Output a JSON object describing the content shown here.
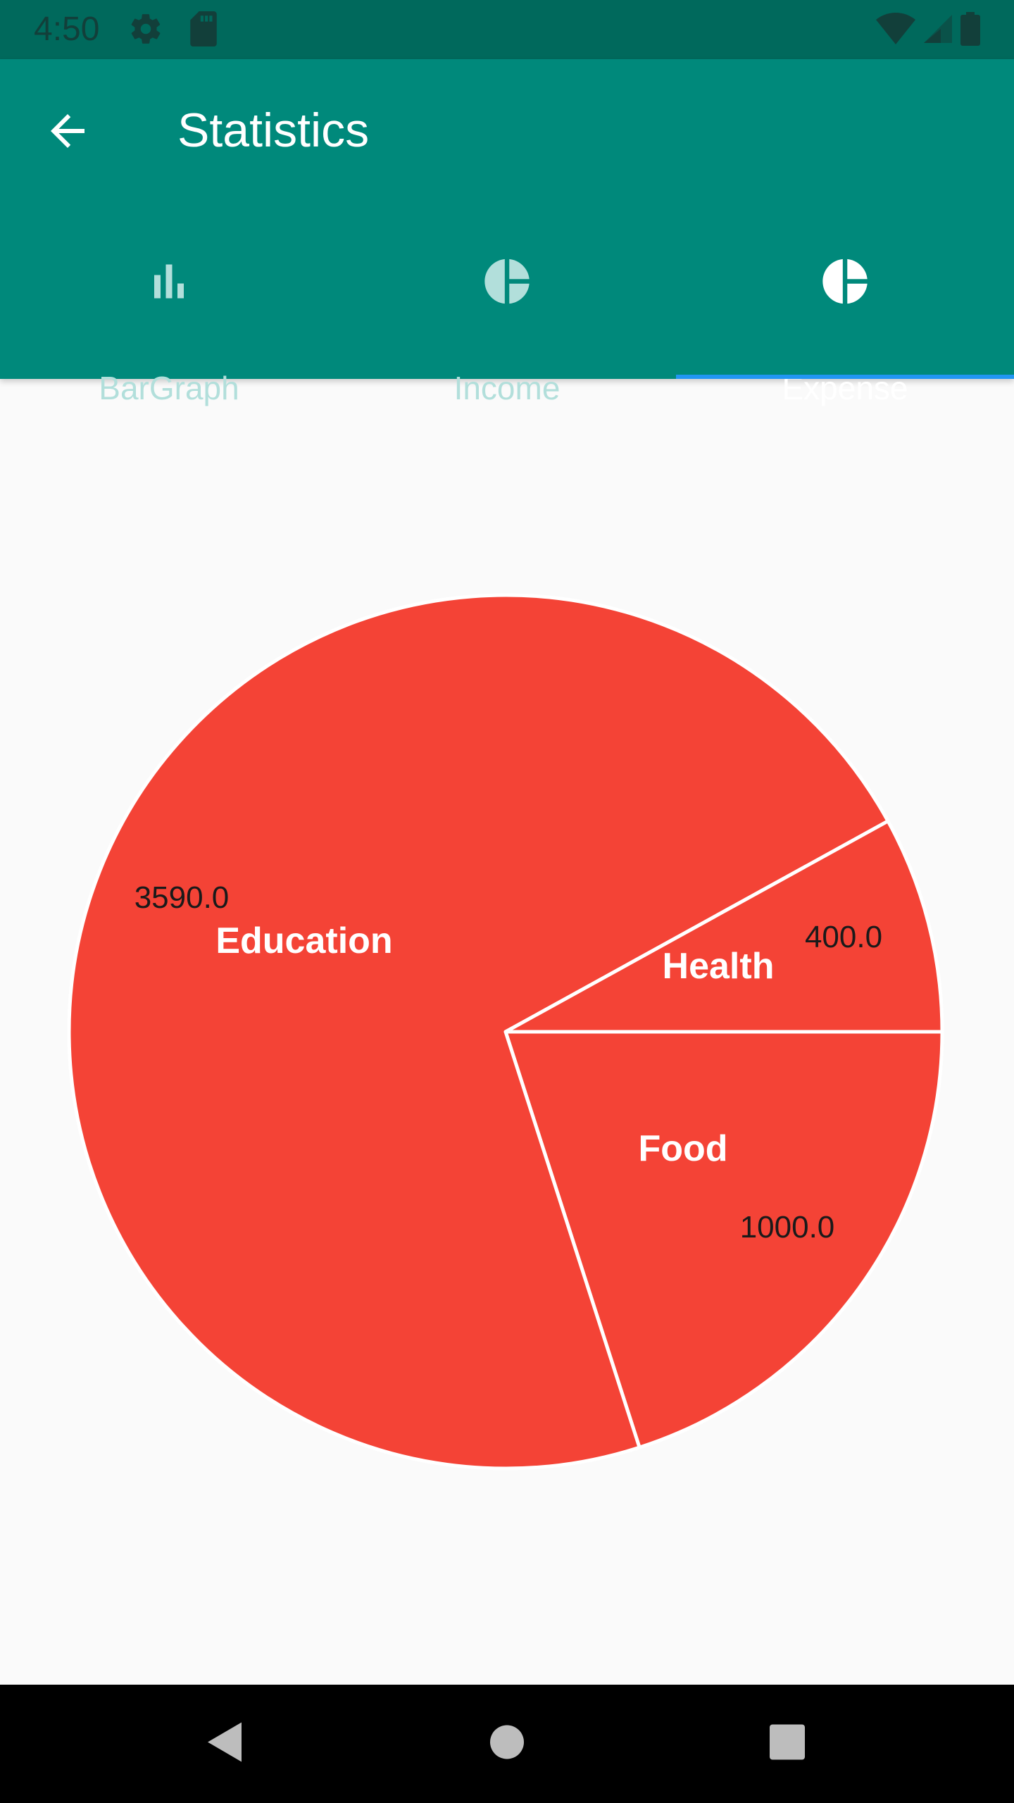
{
  "status_bar": {
    "time": "4:50"
  },
  "app_bar": {
    "title": "Statistics"
  },
  "tabs": [
    {
      "label": "BarGraph",
      "icon": "bar-chart-icon",
      "active": false
    },
    {
      "label": "Income",
      "icon": "pie-chart-icon",
      "active": false
    },
    {
      "label": "Expense",
      "icon": "pie-chart-icon",
      "active": true
    }
  ],
  "colors": {
    "status_bar": "#00695C",
    "app_bar": "#00897B",
    "tab_indicator": "#2196F3",
    "slice": "#F44336",
    "slice_border": "#FFFFFF",
    "background": "#FAFAFA"
  },
  "chart_data": {
    "type": "pie",
    "slices": [
      {
        "label": "Education",
        "value": 3590.0,
        "value_label": "3590.0"
      },
      {
        "label": "Health",
        "value": 400.0,
        "value_label": "400.0"
      },
      {
        "label": "Food",
        "value": 1000.0,
        "value_label": "1000.0"
      }
    ]
  }
}
